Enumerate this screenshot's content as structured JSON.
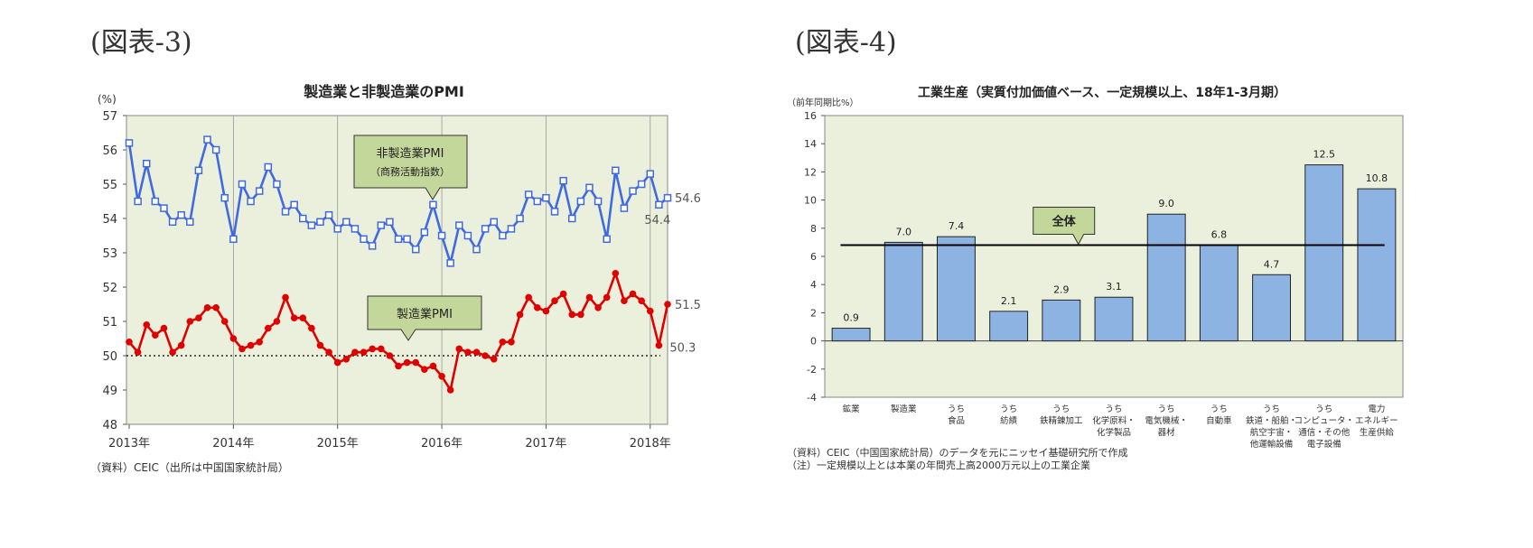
{
  "figures": {
    "fig3_label": "(図表-3)",
    "fig4_label": "(図表-4)"
  },
  "chart_data": [
    {
      "type": "line",
      "title": "製造業と非製造業のPMI",
      "yunit": "(%)",
      "ylim": [
        48,
        57
      ],
      "yticks": [
        48,
        49,
        50,
        51,
        52,
        53,
        54,
        55,
        56,
        57
      ],
      "xlabels": [
        "2013年",
        "2014年",
        "2015年",
        "2016年",
        "2017年",
        "2018年"
      ],
      "grid": "vertical lines at each year",
      "source": "（資料）CEIC（出所は中国国家統計局）",
      "series": [
        {
          "name": "非製造業PMI",
          "callout_sub": "（商務活動指数）",
          "color": "#4169e1",
          "marker": "square-open",
          "values": [
            56.2,
            54.5,
            55.6,
            54.5,
            54.3,
            53.9,
            54.1,
            53.9,
            55.4,
            56.3,
            56.0,
            54.6,
            53.4,
            55.0,
            54.5,
            54.8,
            55.5,
            55.0,
            54.2,
            54.4,
            54.0,
            53.8,
            53.9,
            54.1,
            53.7,
            53.9,
            53.7,
            53.4,
            53.2,
            53.8,
            53.9,
            53.4,
            53.4,
            53.1,
            53.6,
            54.4,
            53.5,
            52.7,
            53.8,
            53.5,
            53.1,
            53.7,
            53.9,
            53.5,
            53.7,
            54.0,
            54.7,
            54.5,
            54.6,
            54.2,
            55.1,
            54.0,
            54.5,
            54.9,
            54.5,
            53.4,
            55.4,
            54.3,
            54.8,
            55.0,
            55.3,
            54.4,
            54.6
          ],
          "end_labels": [
            "54.6",
            "54.4"
          ]
        },
        {
          "name": "製造業PMI",
          "color": "#e00000",
          "marker": "circle-filled",
          "values": [
            50.4,
            50.1,
            50.9,
            50.6,
            50.8,
            50.1,
            50.3,
            51.0,
            51.1,
            51.4,
            51.4,
            51.0,
            50.5,
            50.2,
            50.3,
            50.4,
            50.8,
            51.0,
            51.7,
            51.1,
            51.1,
            50.8,
            50.3,
            50.1,
            49.8,
            49.9,
            50.1,
            50.1,
            50.2,
            50.2,
            50.0,
            49.7,
            49.8,
            49.8,
            49.6,
            49.7,
            49.4,
            49.0,
            50.2,
            50.1,
            50.1,
            50.0,
            49.9,
            50.4,
            50.4,
            51.2,
            51.7,
            51.4,
            51.3,
            51.6,
            51.8,
            51.2,
            51.2,
            51.7,
            51.4,
            51.7,
            52.4,
            51.6,
            51.8,
            51.6,
            51.3,
            50.3,
            51.5
          ],
          "end_labels": [
            "51.5",
            "50.3"
          ]
        }
      ],
      "reference_line": 50
    },
    {
      "type": "bar",
      "title": "工業生産（実質付加価値ベース、一定規模以上、18年1-3月期）",
      "yunit": "（前年同期比%）",
      "ylim": [
        -4,
        16
      ],
      "yticks": [
        -4,
        -2,
        0,
        2,
        4,
        6,
        8,
        10,
        12,
        14,
        16
      ],
      "categories": [
        [
          "鉱業"
        ],
        [
          "製造業"
        ],
        [
          "うち",
          "食品"
        ],
        [
          "うち",
          "紡績"
        ],
        [
          "うち",
          "鉄精錬加工"
        ],
        [
          "うち",
          "化学原料・",
          "化学製品"
        ],
        [
          "うち",
          "電気機械・",
          "器材"
        ],
        [
          "うち",
          "自動車"
        ],
        [
          "うち",
          "鉄道・船舶・",
          "航空宇宙・",
          "他運輸設備"
        ],
        [
          "うち",
          "コンピュータ・",
          "通信・その他",
          "電子設備"
        ],
        [
          "電力",
          "エネルギー",
          "生産供給"
        ]
      ],
      "values": [
        0.9,
        7.0,
        7.4,
        2.1,
        2.9,
        3.1,
        9.0,
        6.8,
        4.7,
        12.5,
        10.8
      ],
      "value_labels": [
        "0.9",
        "7.0",
        "7.4",
        "2.1",
        "2.9",
        "3.1",
        "9.0",
        "6.8",
        "4.7",
        "12.5",
        "10.8"
      ],
      "total_line": {
        "label": "全体",
        "value": 6.8
      },
      "colors": {
        "bar": "#8db3e2",
        "plot_bg": "#ebf0dc",
        "callout_bg": "#c4d79b"
      },
      "notes": [
        "（資料）CEIC（中国国家統計局）のデータを元にニッセイ基礎研究所で作成",
        "（注）一定規模以上とは本業の年間売上高2000万元以上の工業企業"
      ]
    }
  ]
}
